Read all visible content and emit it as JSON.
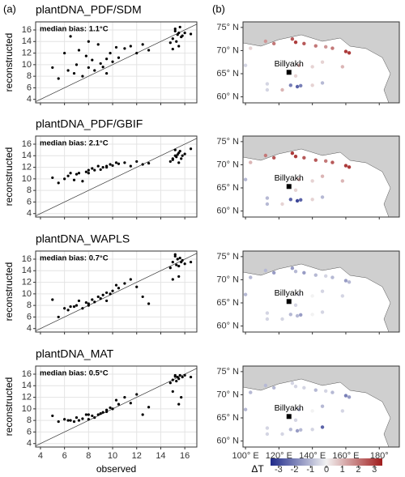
{
  "panel_labels": [
    "(a)",
    "(b)"
  ],
  "colorbar": {
    "label": "ΔT",
    "lim": [
      -3.5,
      3.5
    ],
    "ticks": [
      -3,
      -2,
      -1,
      0,
      1,
      2,
      3
    ],
    "colors": [
      "#1f2a8a",
      "#f2f2f2",
      "#a01c1c"
    ]
  },
  "chart_data": [
    {
      "type": "scatter",
      "title": "plantDNA_PDF/SDM",
      "annotation": "median bias: 1.1°C",
      "ylabel": "reconstructed",
      "xlim": [
        3.6,
        17.0
      ],
      "ylim": [
        3.4,
        17.4
      ],
      "xticks": [
        4,
        6,
        8,
        10,
        12,
        14,
        16
      ],
      "yticks": [
        4,
        6,
        8,
        10,
        12,
        14,
        16
      ],
      "grid": true,
      "identity_line": true,
      "color": "#000000",
      "x": [
        5.0,
        5.5,
        6.0,
        6.3,
        6.8,
        7.0,
        7.2,
        7.5,
        7.8,
        8.0,
        8.3,
        8.5,
        8.8,
        9.0,
        9.2,
        9.5,
        9.8,
        10.0,
        10.3,
        10.5,
        11.0,
        11.5,
        12.0,
        12.5,
        13.0,
        6.5,
        8.0,
        9.5,
        14.8,
        15.0,
        15.2,
        15.3,
        15.4,
        15.5,
        15.6,
        15.7,
        15.8,
        16.0,
        15.5,
        15.2,
        16.5,
        15.0
      ],
      "values": [
        9.5,
        7.6,
        12.0,
        9.0,
        8.5,
        10.0,
        12.5,
        8.0,
        11.5,
        9.5,
        10.8,
        9.0,
        13.5,
        10.2,
        9.6,
        11.0,
        12.0,
        10.5,
        13.0,
        11.2,
        12.8,
        13.2,
        12.0,
        13.5,
        12.5,
        14.9,
        14.0,
        8.5,
        13.8,
        14.5,
        15.8,
        14.0,
        15.2,
        15.5,
        16.5,
        14.8,
        15.0,
        15.5,
        13.2,
        16.2,
        15.3,
        12.7
      ]
    },
    {
      "type": "scatter",
      "title": "plantDNA_PDF/GBIF",
      "annotation": "median bias: 2.1°C",
      "ylabel": "reconstructed",
      "xlim": [
        3.6,
        17.0
      ],
      "ylim": [
        3.4,
        17.4
      ],
      "xticks": [
        4,
        6,
        8,
        10,
        12,
        14,
        16
      ],
      "yticks": [
        4,
        6,
        8,
        10,
        12,
        14,
        16
      ],
      "grid": true,
      "identity_line": true,
      "color": "#000000",
      "x": [
        5.0,
        5.5,
        6.0,
        6.3,
        6.8,
        7.0,
        7.2,
        7.5,
        7.8,
        8.0,
        8.3,
        8.5,
        8.8,
        9.0,
        9.2,
        9.5,
        9.8,
        10.0,
        10.3,
        10.5,
        11.0,
        11.5,
        12.0,
        12.5,
        13.0,
        6.5,
        8.0,
        9.5,
        14.8,
        15.0,
        15.2,
        15.3,
        15.4,
        15.5,
        15.6,
        15.7,
        15.8,
        16.0,
        15.5,
        15.2,
        16.5,
        15.0
      ],
      "values": [
        10.2,
        9.3,
        10.0,
        10.5,
        9.8,
        10.8,
        11.0,
        9.6,
        11.2,
        11.0,
        11.8,
        11.5,
        12.2,
        11.6,
        12.0,
        12.0,
        12.5,
        12.3,
        12.8,
        12.6,
        12.8,
        12.2,
        13.0,
        12.5,
        12.7,
        11.0,
        11.5,
        12.2,
        13.0,
        13.5,
        14.0,
        13.8,
        14.2,
        14.5,
        14.8,
        13.5,
        14.0,
        14.3,
        12.8,
        15.0,
        15.2,
        13.3
      ]
    },
    {
      "type": "scatter",
      "title": "plantDNA_WAPLS",
      "annotation": "median bias: 0.7°C",
      "ylabel": "reconstructed",
      "xlim": [
        3.6,
        17.0
      ],
      "ylim": [
        3.4,
        17.4
      ],
      "xticks": [
        4,
        6,
        8,
        10,
        12,
        14,
        16
      ],
      "yticks": [
        4,
        6,
        8,
        10,
        12,
        14,
        16
      ],
      "grid": true,
      "identity_line": true,
      "color": "#000000",
      "x": [
        5.0,
        5.5,
        6.0,
        6.3,
        6.8,
        7.0,
        7.2,
        7.5,
        7.8,
        8.0,
        8.3,
        8.5,
        8.8,
        9.0,
        9.2,
        9.5,
        9.8,
        10.0,
        10.3,
        10.5,
        11.0,
        11.5,
        12.0,
        12.5,
        13.0,
        6.5,
        8.0,
        9.5,
        14.8,
        15.0,
        15.2,
        15.3,
        15.4,
        15.5,
        15.6,
        15.7,
        15.8,
        16.0,
        15.5,
        15.2,
        16.5,
        15.0
      ],
      "values": [
        9.0,
        6.0,
        7.5,
        7.2,
        7.8,
        8.0,
        8.8,
        7.5,
        8.5,
        8.3,
        9.0,
        8.6,
        9.5,
        9.2,
        9.8,
        10.2,
        10.0,
        10.5,
        11.5,
        11.0,
        11.8,
        12.5,
        11.2,
        9.5,
        8.3,
        7.8,
        8.0,
        8.8,
        14.5,
        15.5,
        16.8,
        15.0,
        16.0,
        14.8,
        16.2,
        15.5,
        15.8,
        15.2,
        13.0,
        16.5,
        15.5,
        12.5
      ]
    },
    {
      "type": "scatter",
      "title": "plantDNA_MAT",
      "annotation": "median bias: 0.5°C",
      "ylabel": "reconstructed",
      "xlabel": "observed",
      "show_xtick_labels": true,
      "xlim": [
        3.6,
        17.0
      ],
      "ylim": [
        3.4,
        17.4
      ],
      "xticks": [
        4,
        6,
        8,
        10,
        12,
        14,
        16
      ],
      "yticks": [
        4,
        6,
        8,
        10,
        12,
        14,
        16
      ],
      "grid": true,
      "identity_line": true,
      "color": "#000000",
      "x": [
        5.0,
        5.5,
        6.0,
        6.3,
        6.8,
        7.0,
        7.2,
        7.5,
        7.8,
        8.0,
        8.3,
        8.5,
        8.8,
        9.0,
        9.2,
        9.5,
        9.8,
        10.0,
        10.3,
        10.5,
        11.0,
        11.5,
        12.0,
        12.5,
        13.0,
        6.5,
        8.0,
        9.5,
        14.8,
        15.0,
        15.2,
        15.3,
        15.4,
        15.5,
        15.6,
        15.7,
        15.8,
        16.0,
        15.5,
        15.2,
        16.5,
        15.0
      ],
      "values": [
        8.8,
        7.8,
        8.2,
        8.0,
        7.8,
        8.5,
        8.0,
        8.3,
        9.0,
        8.2,
        8.8,
        8.5,
        9.0,
        9.2,
        9.4,
        9.8,
        10.2,
        10.0,
        11.5,
        10.8,
        12.0,
        11.0,
        12.5,
        9.0,
        10.3,
        8.0,
        9.0,
        9.5,
        14.5,
        15.0,
        15.8,
        14.8,
        15.5,
        15.2,
        15.8,
        12.0,
        15.5,
        15.8,
        10.8,
        15.6,
        15.5,
        13.0
      ]
    },
    {
      "type": "map",
      "station": {
        "label": "Billyakh",
        "lon": 126,
        "lat": 65.3
      },
      "xlim": [
        98.5,
        192
      ],
      "ylim": [
        58.7,
        76.2
      ],
      "xticks": [
        {
          "value": 100,
          "label": "100° E"
        },
        {
          "value": 120,
          "label": "120° E"
        },
        {
          "value": 140,
          "label": "140° E"
        },
        {
          "value": 160,
          "label": "160° E"
        },
        {
          "value": 180,
          "label": "180°"
        }
      ],
      "yticks": [
        {
          "value": 75,
          "label": "75° N"
        },
        {
          "value": 70,
          "label": "70° N"
        },
        {
          "value": 65,
          "label": "65° N"
        },
        {
          "value": 60,
          "label": "60° N"
        }
      ],
      "x": [
        112,
        117,
        128,
        130,
        135,
        142,
        148,
        152,
        160,
        162,
        158,
        146,
        140,
        132,
        130,
        127,
        131,
        133,
        113,
        113,
        122,
        140,
        100,
        103,
        146
      ],
      "values": [
        72,
        71.5,
        72.5,
        71.8,
        71.5,
        71,
        70.8,
        70.5,
        69.8,
        69.5,
        66.5,
        67.5,
        66.5,
        66.8,
        64.5,
        62.5,
        62.2,
        62.4,
        62.8,
        61.5,
        61.5,
        62.5,
        66.8,
        70.5,
        63
      ],
      "dT": [
        1.5,
        2,
        2.5,
        3,
        2.5,
        2,
        1.5,
        2,
        3,
        3,
        1,
        0.5,
        0.5,
        1,
        0.5,
        -2,
        -2.5,
        -2,
        -0.5,
        -0.5,
        1,
        0.5,
        -0.5,
        0.5,
        -1
      ]
    },
    {
      "type": "map",
      "station": {
        "label": "Billyakh",
        "lon": 126,
        "lat": 65.3
      },
      "xlim": [
        98.5,
        192
      ],
      "ylim": [
        58.7,
        76.2
      ],
      "xticks": [
        {
          "value": 100,
          "label": "100° E"
        },
        {
          "value": 120,
          "label": "120° E"
        },
        {
          "value": 140,
          "label": "140° E"
        },
        {
          "value": 160,
          "label": "160° E"
        },
        {
          "value": 180,
          "label": "180°"
        }
      ],
      "yticks": [
        {
          "value": 75,
          "label": "75° N"
        },
        {
          "value": 70,
          "label": "70° N"
        },
        {
          "value": 65,
          "label": "65° N"
        },
        {
          "value": 60,
          "label": "60° N"
        }
      ],
      "x": [
        112,
        117,
        128,
        130,
        135,
        142,
        148,
        152,
        160,
        162,
        158,
        146,
        140,
        132,
        130,
        127,
        131,
        133,
        113,
        113,
        122,
        140,
        100,
        103,
        146
      ],
      "values": [
        72,
        71.5,
        72.5,
        71.8,
        71.5,
        71,
        70.8,
        70.5,
        69.8,
        69.5,
        66.5,
        67.5,
        66.5,
        66.8,
        64.5,
        62.5,
        62.2,
        62.4,
        62.8,
        61.5,
        61.5,
        62.5,
        66.8,
        70.5,
        63
      ],
      "dT": [
        2,
        2.5,
        3,
        3,
        2.5,
        2.5,
        2,
        2.5,
        3,
        3,
        1,
        1,
        0.5,
        1,
        0.5,
        -2.5,
        -3,
        -2.5,
        -1,
        -1,
        0.5,
        0.5,
        -1,
        1,
        -1
      ]
    },
    {
      "type": "map",
      "station": {
        "label": "Billyakh",
        "lon": 126,
        "lat": 65.3
      },
      "xlim": [
        98.5,
        192
      ],
      "ylim": [
        58.7,
        76.2
      ],
      "xticks": [
        {
          "value": 100,
          "label": "100° E"
        },
        {
          "value": 120,
          "label": "120° E"
        },
        {
          "value": 140,
          "label": "140° E"
        },
        {
          "value": 160,
          "label": "160° E"
        },
        {
          "value": 180,
          "label": "180°"
        }
      ],
      "yticks": [
        {
          "value": 75,
          "label": "75° N"
        },
        {
          "value": 70,
          "label": "70° N"
        },
        {
          "value": 65,
          "label": "65° N"
        },
        {
          "value": 60,
          "label": "60° N"
        }
      ],
      "x": [
        112,
        117,
        128,
        130,
        135,
        142,
        148,
        152,
        160,
        162,
        158,
        146,
        140,
        132,
        130,
        127,
        131,
        133,
        113,
        113,
        122,
        140,
        100,
        103,
        146
      ],
      "values": [
        72,
        71.5,
        72.5,
        71.8,
        71.5,
        71,
        70.8,
        70.5,
        69.8,
        69.5,
        66.5,
        67.5,
        66.5,
        66.8,
        64.5,
        62.5,
        62.2,
        62.4,
        62.8,
        61.5,
        61.5,
        62.5,
        66.8,
        70.5,
        63
      ],
      "dT": [
        -1,
        -1.5,
        -1.5,
        -1,
        -1.5,
        -1,
        -0.5,
        -1,
        -1.5,
        -1,
        -0.5,
        -0.5,
        0,
        -0.5,
        -0.5,
        -1,
        -1,
        -1.5,
        -0.5,
        -0.5,
        -0.5,
        0,
        -1,
        -1,
        -0.5
      ]
    },
    {
      "type": "map",
      "station": {
        "label": "Billyakh",
        "lon": 126,
        "lat": 65.3
      },
      "xlim": [
        98.5,
        192
      ],
      "ylim": [
        58.7,
        76.2
      ],
      "show_xtick_labels": true,
      "xticks": [
        {
          "value": 100,
          "label": "100° E"
        },
        {
          "value": 120,
          "label": "120° E"
        },
        {
          "value": 140,
          "label": "140° E"
        },
        {
          "value": 160,
          "label": "160° E"
        },
        {
          "value": 180,
          "label": "180°"
        }
      ],
      "yticks": [
        {
          "value": 75,
          "label": "75° N"
        },
        {
          "value": 70,
          "label": "70° N"
        },
        {
          "value": 65,
          "label": "65° N"
        },
        {
          "value": 60,
          "label": "60° N"
        }
      ],
      "x": [
        112,
        117,
        128,
        130,
        135,
        142,
        148,
        152,
        160,
        162,
        158,
        146,
        140,
        132,
        130,
        127,
        131,
        133,
        113,
        113,
        122,
        140,
        100,
        103,
        146
      ],
      "values": [
        72,
        71.5,
        72.5,
        71.8,
        71.5,
        71,
        70.8,
        70.5,
        69.8,
        69.5,
        66.5,
        67.5,
        66.5,
        66.8,
        64.5,
        62.5,
        62.2,
        62.4,
        62.8,
        61.5,
        61.5,
        62.5,
        66.8,
        70.5,
        63
      ],
      "dT": [
        -1,
        -1,
        -0.5,
        -0.5,
        -0.5,
        -1,
        -0.5,
        -1,
        -2,
        -1.5,
        -0.5,
        -1,
        0,
        -1,
        -0.5,
        -1,
        -1.5,
        -1,
        -0.5,
        -0.5,
        -0.5,
        -0.5,
        -1,
        -1,
        -2.5
      ]
    }
  ]
}
